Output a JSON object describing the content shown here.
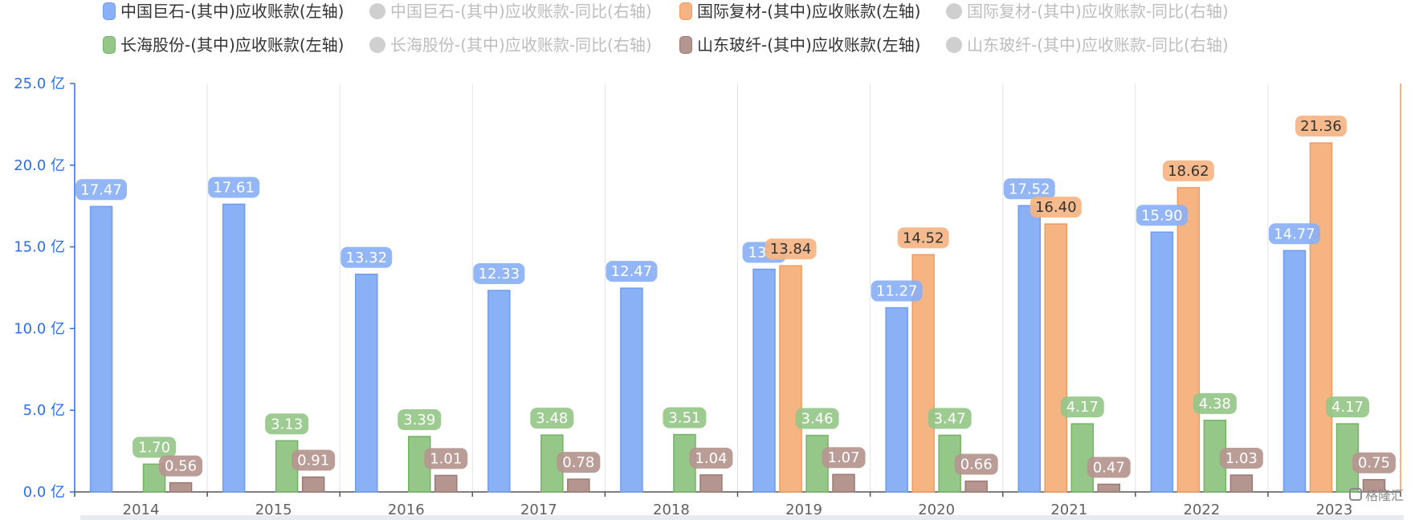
{
  "legend": [
    {
      "label": "中国巨石-(其中)应收账款(左轴)",
      "color": "#8ab0f5",
      "border": "#6d9cf0",
      "active": true,
      "shape": "rect"
    },
    {
      "label": "中国巨石-(其中)应收账款-同比(右轴)",
      "color": "#cfcfcf",
      "active": false,
      "shape": "circle"
    },
    {
      "label": "国际复材-(其中)应收账款(左轴)",
      "color": "#f5b482",
      "border": "#f09b5e",
      "active": true,
      "shape": "rect"
    },
    {
      "label": "国际复材-(其中)应收账款-同比(右轴)",
      "color": "#cfcfcf",
      "active": false,
      "shape": "circle"
    },
    {
      "label": "长海股份-(其中)应收账款(左轴)",
      "color": "#95c788",
      "border": "#74b365",
      "active": true,
      "shape": "rect"
    },
    {
      "label": "长海股份-(其中)应收账款-同比(右轴)",
      "color": "#cfcfcf",
      "active": false,
      "shape": "circle"
    },
    {
      "label": "山东玻纤-(其中)应收账款(左轴)",
      "color": "#b5958f",
      "border": "#9c7a73",
      "active": true,
      "shape": "rect"
    },
    {
      "label": "山东玻纤-(其中)应收账款-同比(右轴)",
      "color": "#cfcfcf",
      "active": false,
      "shape": "circle"
    }
  ],
  "colors": {
    "axis": "#2a6ff0",
    "right_axis": "#f09b5e",
    "grid": "#e3e3e3",
    "active_legend_text": "#333333",
    "inactive_legend_text": "#bdbdbd"
  },
  "watermark": "格隆汇",
  "chart_data": {
    "type": "bar",
    "categories": [
      "2014",
      "2015",
      "2016",
      "2017",
      "2018",
      "2019",
      "2020",
      "2021",
      "2022",
      "2023"
    ],
    "y_unit": "亿",
    "ylim": [
      0,
      25
    ],
    "yticks": [
      "0.0 亿",
      "5.0 亿",
      "10.0 亿",
      "15.0 亿",
      "20.0 亿",
      "25.0 亿"
    ],
    "grid": "vertical",
    "legend_position": "top",
    "series": [
      {
        "name": "中国巨石-(其中)应收账款(左轴)",
        "color": "#8ab0f5",
        "border": "#6d9cf0",
        "values": [
          17.47,
          17.61,
          13.32,
          12.33,
          12.47,
          13.63,
          11.27,
          17.52,
          15.9,
          14.77
        ],
        "labels": [
          "17.47",
          "17.61",
          "13.32",
          "12.33",
          "12.47",
          "13.6",
          "11.27",
          "17.52",
          "15.90",
          "14.77"
        ]
      },
      {
        "name": "国际复材-(其中)应收账款(左轴)",
        "color": "#f5b482",
        "border": "#f09b5e",
        "values": [
          null,
          null,
          null,
          null,
          null,
          13.84,
          14.52,
          16.4,
          18.62,
          21.36
        ],
        "labels": [
          null,
          null,
          null,
          null,
          null,
          "13.84",
          "14.52",
          "16.40",
          "18.62",
          "21.36"
        ]
      },
      {
        "name": "长海股份-(其中)应收账款(左轴)",
        "color": "#95c788",
        "border": "#74b365",
        "values": [
          1.7,
          3.13,
          3.39,
          3.48,
          3.51,
          3.46,
          3.47,
          4.17,
          4.38,
          4.17
        ],
        "labels": [
          "1.70",
          "3.13",
          "3.39",
          "3.48",
          "3.51",
          "3.46",
          "3.47",
          "4.17",
          "4.38",
          "4.17"
        ]
      },
      {
        "name": "山东玻纤-(其中)应收账款(左轴)",
        "color": "#b5958f",
        "border": "#9c7a73",
        "values": [
          0.56,
          0.91,
          1.01,
          0.78,
          1.04,
          1.07,
          0.66,
          0.47,
          1.03,
          0.75
        ],
        "labels": [
          "0.56",
          "0.91",
          "1.01",
          "0.78",
          "1.04",
          "1.07",
          "0.66",
          "0.47",
          "1.03",
          "0.75"
        ]
      }
    ]
  }
}
